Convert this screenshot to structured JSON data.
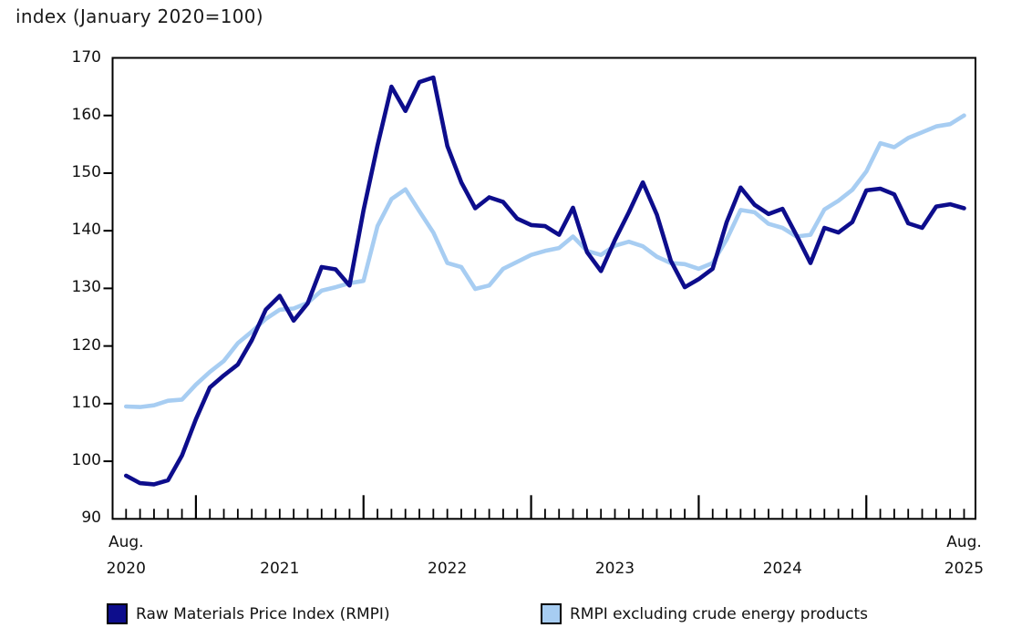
{
  "chart_data": {
    "type": "line",
    "title": "index (January 2020=100)",
    "x_frequency": "monthly",
    "x_range": [
      "2020-08",
      "2025-08"
    ],
    "x_axis": {
      "start_label": [
        "Aug.",
        "2020"
      ],
      "end_label": [
        "Aug.",
        "2025"
      ],
      "year_labels": [
        "2021",
        "2022",
        "2023",
        "2024"
      ]
    },
    "y_axis": {
      "ticks": [
        90,
        100,
        110,
        120,
        130,
        140,
        150,
        160,
        170
      ],
      "range": [
        90,
        170
      ]
    },
    "grid": false,
    "legend_position": "bottom",
    "axis_color": "#000000",
    "series": [
      {
        "name": "Raw Materials Price Index (RMPI)",
        "color": "#0d0d8c",
        "values": [
          97.5,
          96.2,
          96.0,
          96.7,
          101.0,
          107.3,
          112.8,
          114.9,
          116.8,
          121.0,
          126.3,
          128.7,
          124.4,
          127.4,
          133.7,
          133.3,
          130.5,
          143.5,
          154.8,
          165.0,
          160.8,
          165.8,
          166.6,
          154.7,
          148.4,
          143.9,
          145.8,
          145.0,
          142.1,
          141.0,
          140.8,
          139.3,
          144.0,
          136.3,
          133.0,
          138.4,
          143.2,
          148.4,
          142.8,
          134.8,
          130.2,
          131.6,
          133.4,
          141.5,
          147.5,
          144.5,
          142.9,
          143.8,
          139.2,
          134.4,
          140.5,
          139.7,
          141.5,
          147.0,
          147.3,
          146.3,
          141.3,
          140.5,
          144.2,
          144.6,
          143.9
        ]
      },
      {
        "name": "RMPI excluding crude energy products",
        "color": "#a7cdf2",
        "values": [
          109.5,
          109.4,
          109.7,
          110.5,
          110.7,
          113.3,
          115.5,
          117.4,
          120.5,
          122.5,
          124.7,
          126.3,
          126.5,
          127.5,
          129.6,
          130.2,
          130.9,
          131.3,
          140.8,
          145.5,
          147.2,
          143.4,
          139.7,
          134.4,
          133.7,
          129.9,
          130.5,
          133.4,
          134.6,
          135.8,
          136.5,
          137.0,
          139.0,
          136.5,
          135.8,
          137.4,
          138.1,
          137.3,
          135.5,
          134.4,
          134.2,
          133.4,
          134.4,
          138.5,
          143.6,
          143.2,
          141.2,
          140.5,
          139.0,
          139.3,
          143.7,
          145.2,
          147.1,
          150.3,
          155.2,
          154.5,
          156.1,
          157.1,
          158.1,
          158.5,
          160.0
        ]
      }
    ]
  }
}
